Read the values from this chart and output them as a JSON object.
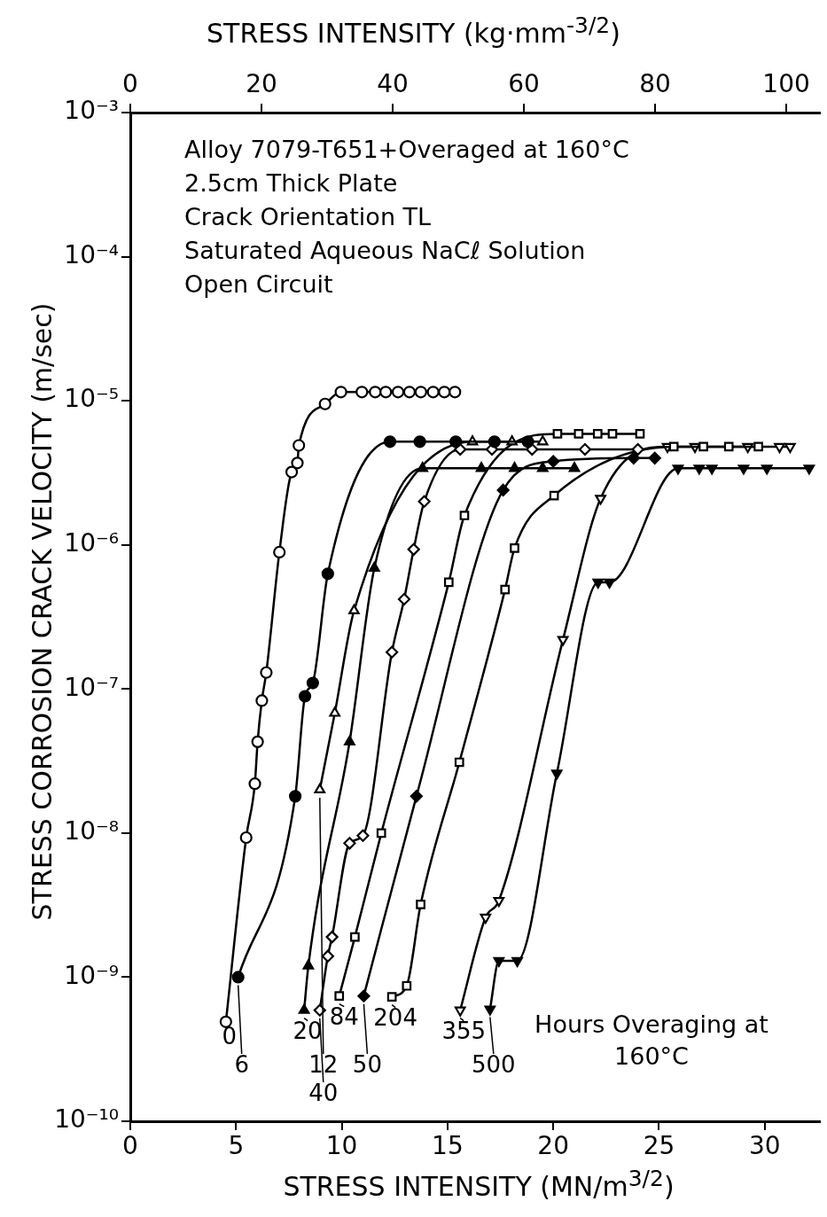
{
  "chart_data": {
    "type": "line",
    "xlabel": "STRESS INTENSITY (MN/m$^{3/2}$)",
    "x2label": "STRESS INTENSITY (kg·mm$^{-3/2}$)",
    "ylabel": "STRESS CORROSION CRACK VELOCITY (m/sec)",
    "xlim": [
      0,
      32.6
    ],
    "xticks": [
      0,
      5,
      10,
      15,
      20,
      25,
      30
    ],
    "x2lim": [
      0,
      105.1
    ],
    "x2ticks": [
      0,
      20,
      40,
      60,
      80,
      100
    ],
    "ylim": [
      1e-10,
      0.001
    ],
    "log": "y",
    "yticks": [
      {
        "value": 0.001,
        "label": "10⁻³"
      },
      {
        "value": 0.0001,
        "label": "10⁻⁴"
      },
      {
        "value": 1e-05,
        "label": "10⁻⁵"
      },
      {
        "value": 1e-06,
        "label": "10⁻⁶"
      },
      {
        "value": 1e-07,
        "label": "10⁻⁷"
      },
      {
        "value": 1e-08,
        "label": "10⁻⁸"
      },
      {
        "value": 1e-09,
        "label": "10⁻⁹"
      },
      {
        "value": 1e-10,
        "label": "10⁻¹⁰"
      }
    ],
    "grid": false,
    "legend": "bottom",
    "line_style": "solid",
    "annotations": [
      "Alloy 7079-T651+Overaged at 160°C",
      "2.5cm Thick Plate",
      "Crack Orientation TL",
      "Saturated Aqueous NaCℓ Solution",
      "Open Circuit",
      "Hours Overaging at 160°C"
    ],
    "series": [
      {
        "name": "0",
        "color": "#000000",
        "marker": "circle-open",
        "x": [
          4.52,
          5.48,
          5.89,
          6.02,
          6.22,
          6.43,
          7.05,
          7.63,
          7.9,
          7.97,
          9.21,
          9.96,
          10.95,
          11.58,
          12.08,
          12.66,
          13.2,
          13.74,
          14.32,
          14.85,
          15.35
        ],
        "values": [
          4.9e-10,
          9.3e-09,
          2.2e-08,
          4.3e-08,
          8.3e-08,
          1.3e-07,
          8.9e-07,
          3.2e-06,
          3.7e-06,
          4.9e-06,
          9.5e-06,
          1.15e-05,
          1.15e-05,
          1.15e-05,
          1.15e-05,
          1.15e-05,
          1.15e-05,
          1.15e-05,
          1.15e-05,
          1.15e-05,
          1.15e-05
        ]
      },
      {
        "name": "6",
        "color": "#000000",
        "marker": "circle",
        "x": [
          5.1,
          7.8,
          8.26,
          8.63,
          9.34,
          12.28,
          13.69,
          15.39,
          17.22,
          18.8
        ],
        "values": [
          1e-09,
          1.8e-08,
          8.9e-08,
          1.1e-07,
          6.3e-07,
          5.2e-06,
          5.2e-06,
          5.2e-06,
          5.2e-06,
          5.2e-06
        ]
      },
      {
        "name": "12",
        "color": "#000000",
        "marker": "triangle-open",
        "x": [
          8.96,
          9.67,
          10.58,
          16.18,
          18.05,
          19.5
        ],
        "values": [
          2e-08,
          6.8e-08,
          3.5e-07,
          5.2e-06,
          5.2e-06,
          5.2e-06
        ]
      },
      {
        "name": "20",
        "color": "#000000",
        "marker": "triangle",
        "x": [
          8.22,
          8.42,
          10.37,
          11.54,
          13.82,
          16.6,
          18.17,
          19.5,
          21.0
        ],
        "values": [
          5.9e-10,
          1.2e-09,
          4.3e-08,
          6.9e-07,
          3.4e-06,
          3.4e-06,
          3.4e-06,
          3.4e-06,
          3.4e-06
        ]
      },
      {
        "name": "40",
        "color": "#000000",
        "marker": "diamond-open",
        "x": [
          8.96,
          9.34,
          9.54,
          10.37,
          11.0,
          12.37,
          12.95,
          13.4,
          13.9,
          15.6,
          17.1,
          19.0,
          21.5,
          24.0
        ],
        "values": [
          5.9e-10,
          1.4e-09,
          1.9e-09,
          8.5e-09,
          9.6e-09,
          1.8e-07,
          4.2e-07,
          9.3e-07,
          2e-06,
          4.6e-06,
          4.6e-06,
          4.6e-06,
          4.6e-06,
          4.6e-06
        ]
      },
      {
        "name": "50",
        "color": "#000000",
        "marker": "diamond",
        "x": [
          11.04,
          13.53,
          17.63,
          20.0,
          23.8,
          24.8
        ],
        "values": [
          7.4e-10,
          1.8e-08,
          2.4e-06,
          3.8e-06,
          4e-06,
          4e-06
        ]
      },
      {
        "name": "84",
        "color": "#000000",
        "marker": "square-open",
        "x": [
          9.88,
          10.62,
          11.87,
          15.06,
          15.8,
          20.2,
          21.2,
          22.1,
          22.8,
          24.1
        ],
        "values": [
          7.4e-10,
          1.9e-09,
          1e-08,
          5.5e-07,
          1.6e-06,
          5.9e-06,
          5.9e-06,
          5.9e-06,
          5.9e-06,
          5.9e-06
        ]
      },
      {
        "name": "204",
        "color": "#000000",
        "marker": "square-open",
        "x": [
          12.37,
          13.07,
          13.73,
          15.56,
          17.72,
          18.17,
          20.04,
          25.7,
          27.1,
          28.3,
          29.7
        ],
        "values": [
          7.3e-10,
          8.7e-10,
          3.2e-09,
          3.1e-08,
          4.9e-07,
          9.5e-07,
          2.2e-06,
          4.8e-06,
          4.8e-06,
          4.8e-06,
          4.8e-06
        ]
      },
      {
        "name": "355",
        "color": "#000000",
        "marker": "triangle_down-open",
        "x": [
          15.6,
          16.8,
          17.43,
          20.46,
          22.24,
          25.4,
          26.7,
          29.2,
          30.7,
          31.2
        ],
        "values": [
          5.9e-10,
          2.6e-09,
          3.4e-09,
          2.2e-07,
          2.1e-06,
          4.8e-06,
          4.8e-06,
          4.8e-06,
          4.8e-06,
          4.8e-06
        ]
      },
      {
        "name": "500",
        "color": "#000000",
        "marker": "triangle_down",
        "x": [
          17.01,
          17.43,
          18.3,
          20.17,
          22.12,
          22.66,
          25.9,
          26.9,
          27.5,
          29.0,
          30.1,
          32.1
        ],
        "values": [
          6e-10,
          1.3e-09,
          1.3e-09,
          2.6e-08,
          5.5e-07,
          5.5e-07,
          3.4e-06,
          3.4e-06,
          3.4e-06,
          3.4e-06,
          3.4e-06,
          3.4e-06
        ]
      }
    ]
  }
}
